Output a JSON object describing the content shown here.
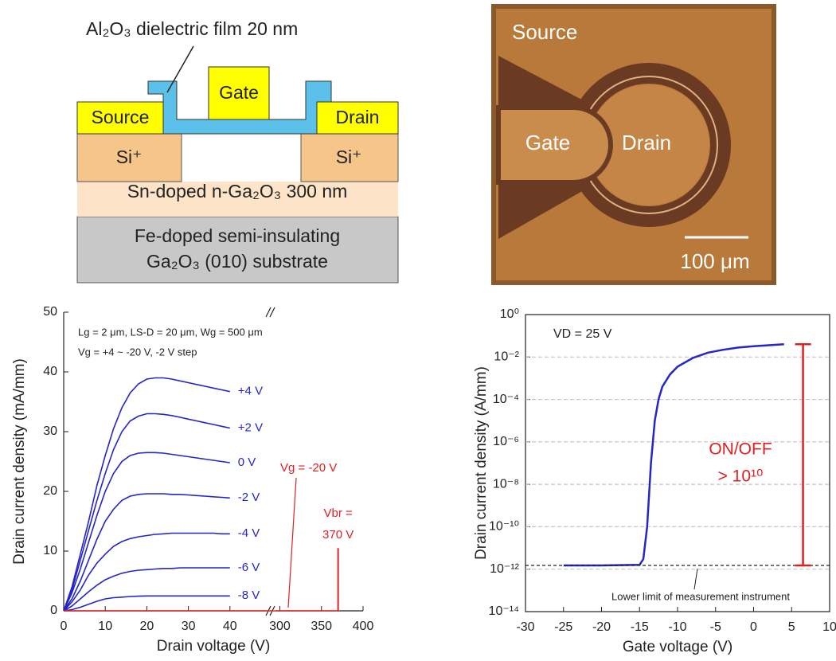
{
  "schematic": {
    "film_label": "Al₂O₃ dielectric film  20 nm",
    "gate": "Gate",
    "source": "Source",
    "drain": "Drain",
    "implant_left": "Si⁺",
    "implant_right": "Si⁺",
    "channel": "Sn-doped n-Ga₂O₃  300 nm",
    "substrate_line1": "Fe-doped semi-insulating",
    "substrate_line2": "Ga₂O₃ (010) substrate"
  },
  "micrograph": {
    "source": "Source",
    "gate": "Gate",
    "drain": "Drain",
    "scale_bar": "100 μm"
  },
  "chart_data": [
    {
      "type": "line",
      "x_label": "Drain voltage (V)",
      "y_label": "Drain current density (mA/mm)",
      "annotations": [
        "Lg = 2 μm, LS-D = 20 μm, Wg = 500 μm",
        "Vg = +4 ~ -20 V, -2 V step"
      ],
      "xlim_segments": [
        [
          0,
          50
        ],
        [
          290,
          400
        ]
      ],
      "xticks": [
        0,
        10,
        20,
        30,
        40,
        300,
        350,
        400
      ],
      "ylim": [
        0,
        50
      ],
      "yticks": [
        0,
        10,
        20,
        30,
        40,
        50
      ],
      "x": [
        0,
        2,
        4,
        6,
        8,
        10,
        12,
        14,
        16,
        18,
        20,
        22,
        24,
        26,
        28,
        30,
        32,
        34,
        36,
        38,
        40
      ],
      "series": [
        {
          "name": "+4 V",
          "color": "#2525c8",
          "values": [
            0,
            4,
            9.5,
            15,
            21,
            26,
            30.5,
            34,
            36.5,
            38,
            38.8,
            39,
            39,
            38.8,
            38.5,
            38.2,
            37.9,
            37.6,
            37.3,
            37,
            36.7
          ]
        },
        {
          "name": "+2 V",
          "color": "#2525c8",
          "values": [
            0,
            3.5,
            8.5,
            13.5,
            18.5,
            23,
            27,
            30,
            31.8,
            32.6,
            33,
            33,
            32.9,
            32.7,
            32.4,
            32.1,
            31.8,
            31.5,
            31.2,
            30.9,
            30.6
          ]
        },
        {
          "name": "0 V",
          "color": "#2525c8",
          "values": [
            0,
            3,
            7,
            11.5,
            16,
            20,
            23,
            25,
            26,
            26.4,
            26.5,
            26.5,
            26.4,
            26.2,
            26,
            25.8,
            25.6,
            25.4,
            25.2,
            25,
            24.8
          ]
        },
        {
          "name": "-2 V",
          "color": "#2525c8",
          "values": [
            0,
            2,
            5,
            8.5,
            12,
            15,
            17,
            18.5,
            19.2,
            19.5,
            19.6,
            19.6,
            19.6,
            19.5,
            19.5,
            19.4,
            19.3,
            19.2,
            19.1,
            19,
            18.9
          ]
        },
        {
          "name": "-4 V",
          "color": "#2525c8",
          "values": [
            0,
            1.5,
            3.5,
            6,
            8,
            9.5,
            10.8,
            11.6,
            12.1,
            12.4,
            12.6,
            12.8,
            12.9,
            13,
            13,
            13,
            13,
            13,
            13,
            12.9,
            12.9
          ]
        },
        {
          "name": "-6 V",
          "color": "#2525c8",
          "values": [
            0,
            0.8,
            2,
            3.2,
            4.3,
            5.2,
            5.8,
            6.3,
            6.6,
            6.8,
            6.9,
            7,
            7.1,
            7.1,
            7.2,
            7.2,
            7.2,
            7.2,
            7.2,
            7.2,
            7.2
          ]
        },
        {
          "name": "-8 V",
          "color": "#2525c8",
          "values": [
            0,
            0.2,
            0.6,
            1.1,
            1.6,
            2,
            2.2,
            2.3,
            2.4,
            2.45,
            2.5,
            2.5,
            2.5,
            2.5,
            2.5,
            2.5,
            2.5,
            2.5,
            2.5,
            2.5,
            2.5
          ]
        },
        {
          "name": "Vg = -20 V",
          "color": "#e02020",
          "x": [
            0,
            40,
            300,
            369
          ],
          "values": [
            0,
            0,
            0,
            0
          ]
        }
      ],
      "breakdown": {
        "text": [
          "Vbr =",
          "370 V"
        ],
        "x": 370,
        "y": 10.5,
        "color": "#e02020"
      }
    },
    {
      "type": "line",
      "x_label": "Gate voltage (V)",
      "y_label": "Drain current density (A/mm)",
      "annotation": "VD = 25 V",
      "log_y": true,
      "grid": true,
      "box": true,
      "xlim": [
        -30,
        10
      ],
      "xticks": [
        -30,
        -25,
        -20,
        -15,
        -10,
        -5,
        0,
        5,
        10
      ],
      "ylim": [
        1e-14,
        1
      ],
      "yticks": [
        {
          "value": 1e-14,
          "label": "10⁻¹⁴"
        },
        {
          "value": 1e-12,
          "label": "10⁻¹²"
        },
        {
          "value": 1e-10,
          "label": "10⁻¹⁰"
        },
        {
          "value": 1e-08,
          "label": "10⁻⁸"
        },
        {
          "value": 1e-06,
          "label": "10⁻⁶"
        },
        {
          "value": 0.0001,
          "label": "10⁻⁴"
        },
        {
          "value": 0.01,
          "label": "10⁻²"
        },
        {
          "value": 1,
          "label": "10⁰"
        }
      ],
      "x": [
        -25,
        -20,
        -15,
        -14.5,
        -14,
        -13.5,
        -13,
        -12.5,
        -12,
        -11,
        -10,
        -8,
        -6,
        -4,
        -2,
        0,
        2,
        4
      ],
      "series": [
        {
          "name": null,
          "color": "#2525c8",
          "values": [
            1.5e-12,
            1.5e-12,
            1.6e-12,
            3e-12,
            1e-10,
            1e-07,
            1e-05,
            0.0001,
            0.0004,
            0.0015,
            0.0035,
            0.009,
            0.016,
            0.022,
            0.028,
            0.032,
            0.036,
            0.04
          ]
        }
      ],
      "lower_limit": {
        "text": "Lower limit of measurement instrument",
        "y": 1.5e-12
      },
      "on_off": {
        "text": [
          "ON/OFF",
          "> 10¹⁰"
        ],
        "x": 6.5,
        "y": [
          1.5e-12,
          0.04
        ],
        "color": "#e02020"
      }
    }
  ]
}
